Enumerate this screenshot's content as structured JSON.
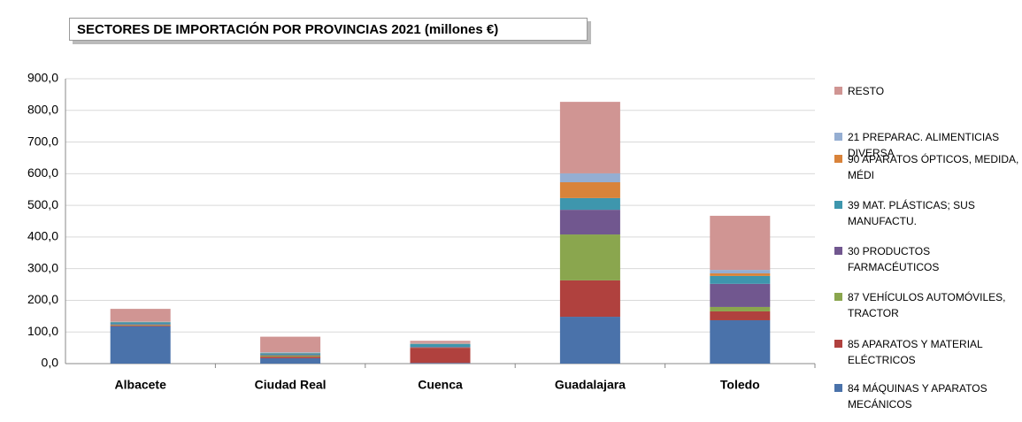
{
  "chart_data": {
    "type": "stacked-bar",
    "title": "SECTORES DE IMPORTACIÓN POR PROVINCIAS 2021 (millones €)",
    "categories": [
      "Albacete",
      "Ciudad Real",
      "Cuenca",
      "Guadalajara",
      "Toledo"
    ],
    "series": [
      {
        "name": "84 MÁQUINAS Y APARATOS MECÁNICOS",
        "color": "#4a72aa",
        "values": [
          118,
          17,
          2,
          148,
          137
        ]
      },
      {
        "name": "85 APARATOS Y MATERIAL ELÉCTRICOS",
        "color": "#b0413e",
        "values": [
          3,
          5,
          48,
          115,
          28
        ]
      },
      {
        "name": "87 VEHÍCULOS AUTOMÓVILES, TRACTOR",
        "color": "#8aa64e",
        "values": [
          2,
          4,
          1,
          145,
          14
        ]
      },
      {
        "name": "30 PRODUCTOS FARMACÉUTICOS",
        "color": "#71578f",
        "values": [
          2,
          2,
          2,
          78,
          73
        ]
      },
      {
        "name": "39 MAT. PLÁSTICAS; SUS MANUFACTU.",
        "color": "#3e96ad",
        "values": [
          6,
          5,
          9,
          37,
          25
        ]
      },
      {
        "name": "90 APARATOS ÓPTICOS, MEDIDA, MÉDI",
        "color": "#d9833a",
        "values": [
          1,
          1,
          1,
          50,
          8
        ]
      },
      {
        "name": "21 PREPARAC. ALIMENTICIAS DIVERSA",
        "color": "#95aed2",
        "values": [
          1,
          2,
          2,
          28,
          11
        ]
      },
      {
        "name": "RESTO",
        "color": "#d09593",
        "values": [
          40,
          49,
          7,
          226,
          171
        ]
      }
    ],
    "ylim": [
      0,
      900
    ],
    "yticks": [
      {
        "value": 0,
        "label": "0,0"
      },
      {
        "value": 100,
        "label": "100,0"
      },
      {
        "value": 200,
        "label": "200,0"
      },
      {
        "value": 300,
        "label": "300,0"
      },
      {
        "value": 400,
        "label": "400,0"
      },
      {
        "value": 500,
        "label": "500,0"
      },
      {
        "value": 600,
        "label": "600,0"
      },
      {
        "value": 700,
        "label": "700,0"
      },
      {
        "value": 800,
        "label": "800,0"
      },
      {
        "value": 900,
        "label": "900,0"
      }
    ],
    "grid": true
  }
}
